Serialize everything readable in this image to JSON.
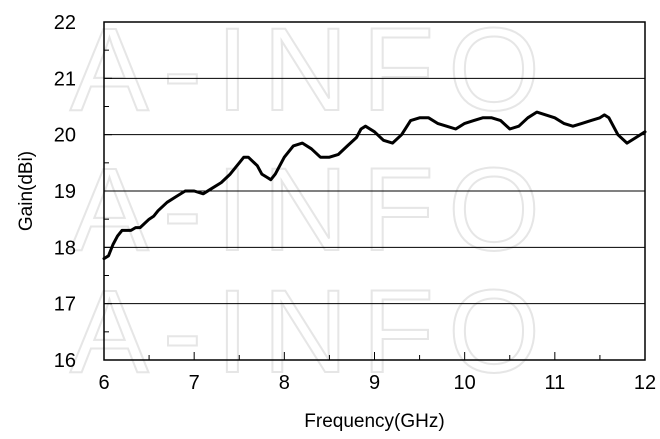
{
  "watermark": "A-INFO",
  "chart_data": {
    "type": "line",
    "title": "",
    "xlabel": "Frequency(GHz)",
    "ylabel": "Gain(dBi)",
    "xlim": [
      6,
      12
    ],
    "ylim": [
      16,
      22
    ],
    "x_ticks": [
      "6",
      "7",
      "8",
      "9",
      "10",
      "11",
      "12"
    ],
    "y_ticks": [
      "16",
      "17",
      "18",
      "19",
      "20",
      "21",
      "22"
    ],
    "grid": "horizontal",
    "legend": "none",
    "line_color": "#000000",
    "series": [
      {
        "x": [
          6.0,
          6.05,
          6.1,
          6.15,
          6.2,
          6.3,
          6.35,
          6.4,
          6.5,
          6.55,
          6.6,
          6.7,
          6.8,
          6.9,
          7.0,
          7.1,
          7.2,
          7.3,
          7.4,
          7.5,
          7.55,
          7.6,
          7.7,
          7.75,
          7.8,
          7.85,
          7.9,
          8.0,
          8.1,
          8.2,
          8.3,
          8.4,
          8.5,
          8.6,
          8.7,
          8.8,
          8.85,
          8.9,
          9.0,
          9.1,
          9.2,
          9.3,
          9.4,
          9.5,
          9.6,
          9.7,
          9.8,
          9.9,
          10.0,
          10.1,
          10.2,
          10.3,
          10.4,
          10.5,
          10.6,
          10.7,
          10.8,
          10.9,
          11.0,
          11.1,
          11.2,
          11.3,
          11.4,
          11.5,
          11.55,
          11.6,
          11.7,
          11.8,
          11.9,
          12.0
        ],
        "y": [
          17.8,
          17.85,
          18.05,
          18.2,
          18.3,
          18.3,
          18.35,
          18.35,
          18.5,
          18.55,
          18.65,
          18.8,
          18.9,
          19.0,
          19.0,
          18.95,
          19.05,
          19.15,
          19.3,
          19.5,
          19.6,
          19.6,
          19.45,
          19.3,
          19.25,
          19.2,
          19.3,
          19.6,
          19.8,
          19.85,
          19.75,
          19.6,
          19.6,
          19.65,
          19.8,
          19.95,
          20.1,
          20.15,
          20.05,
          19.9,
          19.85,
          20.0,
          20.25,
          20.3,
          20.3,
          20.2,
          20.15,
          20.1,
          20.2,
          20.25,
          20.3,
          20.3,
          20.25,
          20.1,
          20.15,
          20.3,
          20.4,
          20.35,
          20.3,
          20.2,
          20.15,
          20.2,
          20.25,
          20.3,
          20.35,
          20.3,
          20.0,
          19.85,
          19.95,
          20.05
        ]
      }
    ]
  }
}
